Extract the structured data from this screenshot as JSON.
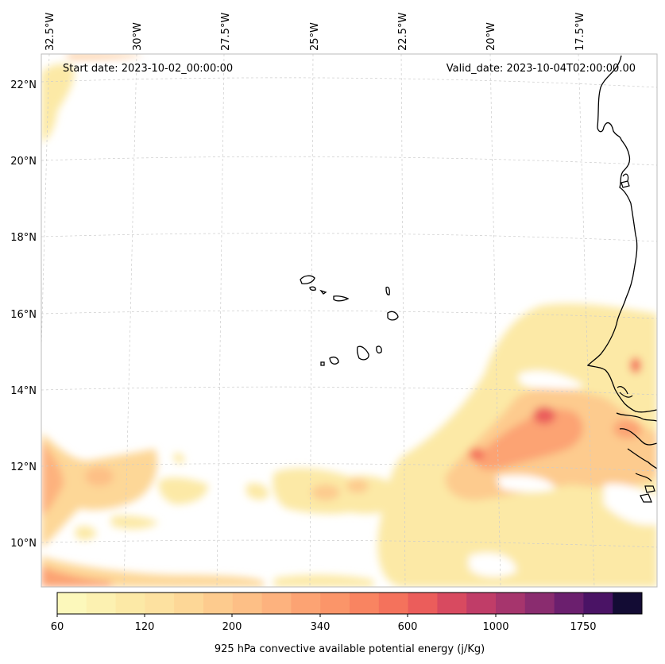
{
  "header": {
    "start_date": "Start date: 2023-10-02_00:00:00",
    "valid_date": "Valid_date: 2023-10-04T02:00:00.00"
  },
  "longitude_labels": [
    "32.5°W",
    "30°W",
    "27.5°W",
    "25°W",
    "22.5°W",
    "20°W",
    "17.5°W"
  ],
  "latitude_labels": [
    "22°N",
    "20°N",
    "18°N",
    "16°N",
    "14°N",
    "12°N",
    "10°N"
  ],
  "colorbar": {
    "title": "925 hPa convective available potential energy (j/Kg)",
    "tick_labels": [
      "60",
      "120",
      "200",
      "340",
      "600",
      "1000",
      "1750"
    ],
    "levels": [
      60,
      80,
      100,
      120,
      150,
      175,
      200,
      250,
      300,
      340,
      400,
      500,
      600,
      700,
      850,
      1000,
      1200,
      1400,
      1750,
      2000,
      2500
    ],
    "colors": [
      "#fcf8bb",
      "#fcf1b1",
      "#fce9a6",
      "#fde1a0",
      "#fdd797",
      "#fdcb8e",
      "#fdbf86",
      "#fdb27e",
      "#fca373",
      "#fb9569",
      "#f98461",
      "#f4725c",
      "#eb5d5b",
      "#d84a60",
      "#c03d68",
      "#a6356d",
      "#8a2c6f",
      "#6b1f6e",
      "#4a1365",
      "#130c34"
    ]
  },
  "chart_data": {
    "type": "heatmap",
    "title": "",
    "variable": "925 hPa convective available potential energy",
    "units": "j/Kg",
    "projection": "conic, coastline overlay",
    "lon_range": [
      -33.5,
      -15.5
    ],
    "lat_range": [
      8.8,
      22.8
    ],
    "contour_levels": [
      60,
      120,
      200,
      340,
      600,
      1000,
      1750
    ],
    "features": [
      {
        "region": "Senegal / Gambia coast",
        "approx_max": 900
      },
      {
        "region": "Atlantic near 13.3N 19.5W",
        "approx_max": 1000
      },
      {
        "region": "West Atlantic 11-12N 30-33W",
        "approx_max": 400
      },
      {
        "region": "Northwest corner 21-22N 33W",
        "approx_max": 200
      }
    ]
  }
}
